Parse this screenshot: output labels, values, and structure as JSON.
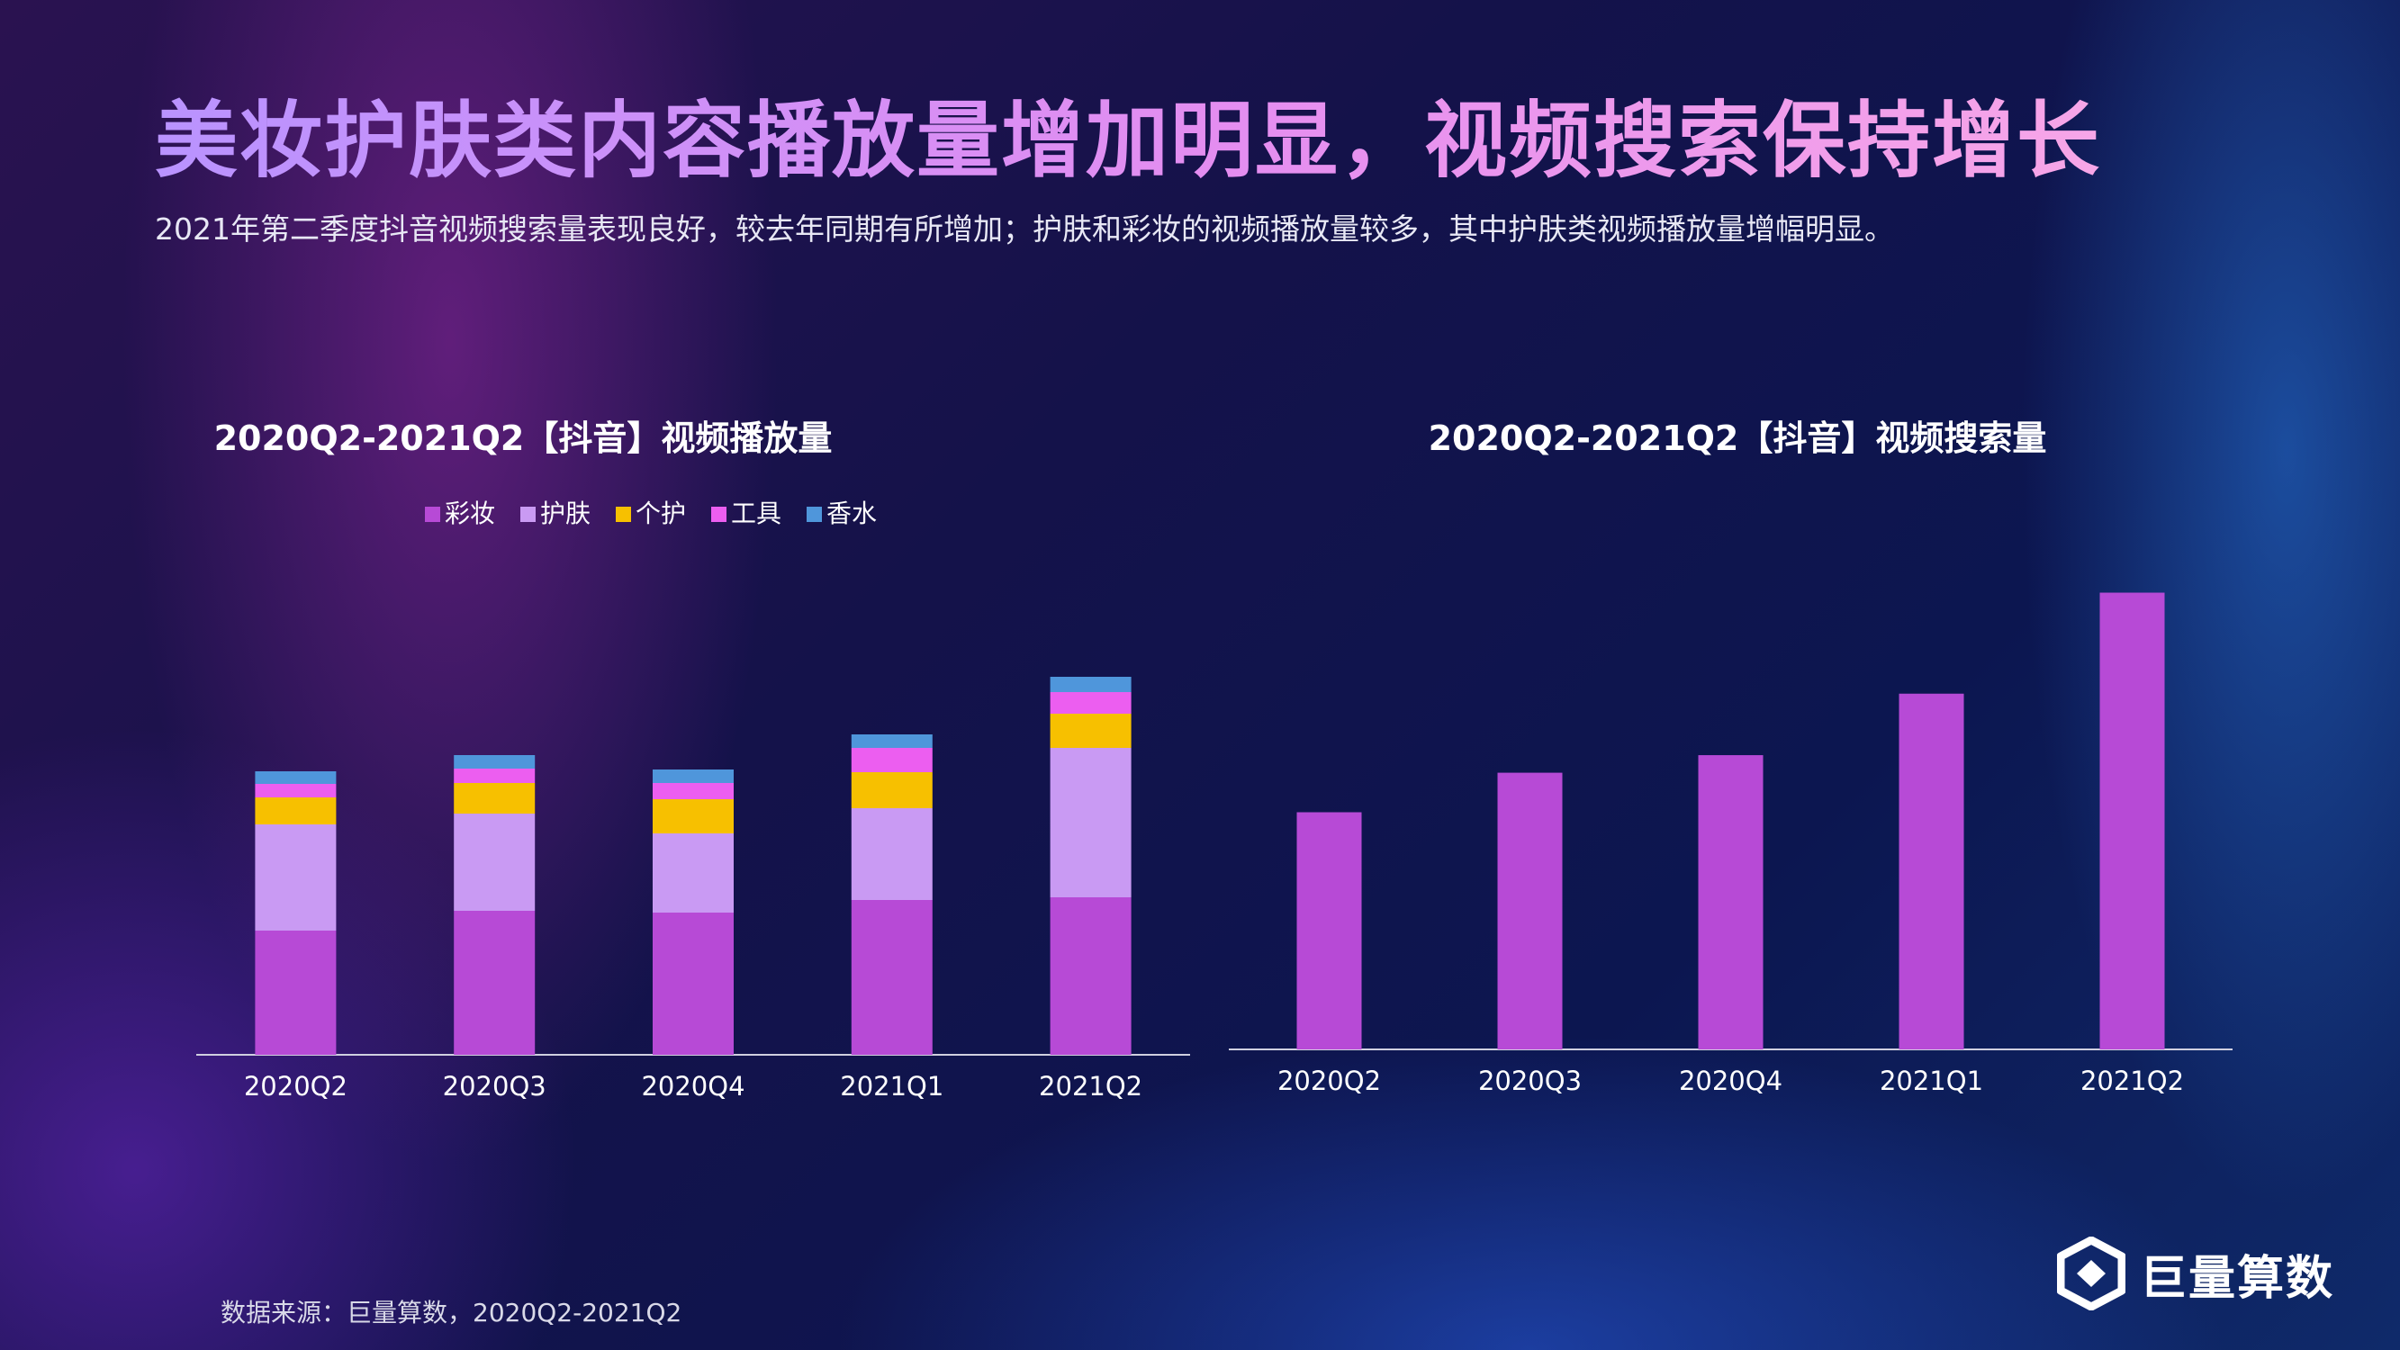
{
  "header": {
    "title": "美妆护肤类内容播放量增加明显，视频搜索保持增长",
    "subtitle": "2021年第二季度抖音视频搜索量表现良好，较去年同期有所增加；护肤和彩妆的视频播放量较多，其中护肤类视频播放量增幅明显。"
  },
  "footer": {
    "source": "数据来源：巨量算数，2020Q2-2021Q2",
    "logo_text": "巨量算数",
    "logo_icon": "juliang-logo-icon"
  },
  "chart_data": [
    {
      "type": "bar",
      "stacked": true,
      "title": "2020Q2-2021Q2【抖音】视频播放量",
      "categories": [
        "2020Q2",
        "2020Q3",
        "2020Q4",
        "2021Q1",
        "2021Q2"
      ],
      "legend_position": "top-center",
      "grid": false,
      "ylim": [
        0,
        430
      ],
      "series": [
        {
          "name": "彩妆",
          "color": "#b74ad6",
          "values": [
            138,
            160,
            158,
            172,
            175
          ]
        },
        {
          "name": "护肤",
          "color": "#c99af3",
          "values": [
            118,
            108,
            88,
            102,
            166
          ]
        },
        {
          "name": "个护",
          "color": "#f7c000",
          "values": [
            30,
            34,
            38,
            40,
            38
          ]
        },
        {
          "name": "工具",
          "color": "#ec5ef0",
          "values": [
            15,
            16,
            18,
            27,
            24
          ]
        },
        {
          "name": "香水",
          "color": "#4f96db",
          "values": [
            14,
            15,
            15,
            15,
            17
          ]
        }
      ]
    },
    {
      "type": "bar",
      "stacked": false,
      "title": "2020Q2-2021Q2【抖音】视频搜索量",
      "categories": [
        "2020Q2",
        "2020Q3",
        "2020Q4",
        "2021Q1",
        "2021Q2"
      ],
      "grid": false,
      "ylim": [
        0,
        540
      ],
      "series": [
        {
          "color": "#b74ad6",
          "values": [
            270,
            315,
            335,
            405,
            520
          ]
        }
      ]
    }
  ]
}
